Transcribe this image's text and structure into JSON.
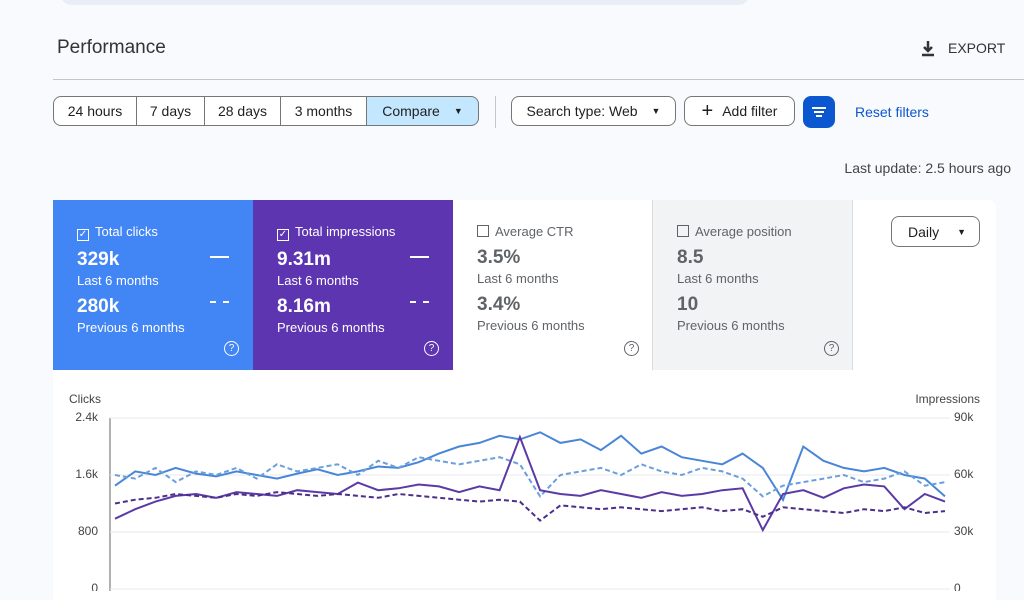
{
  "header": {
    "title": "Performance",
    "export": "EXPORT"
  },
  "filters": {
    "ranges": [
      "24 hours",
      "7 days",
      "28 days",
      "3 months",
      "Compare"
    ],
    "search_type": "Search type: Web",
    "add_filter": "Add filter",
    "reset": "Reset filters"
  },
  "last_update": "Last update: 2.5 hours ago",
  "metrics": [
    {
      "label": "Total clicks",
      "current": "329k",
      "current_period": "Last 6 months",
      "previous": "280k",
      "previous_period": "Previous 6 months",
      "checked": true,
      "color": "#4285f4"
    },
    {
      "label": "Total impressions",
      "current": "9.31m",
      "current_period": "Last 6 months",
      "previous": "8.16m",
      "previous_period": "Previous 6 months",
      "checked": true,
      "color": "#5e35b1"
    },
    {
      "label": "Average CTR",
      "current": "3.5%",
      "current_period": "Last 6 months",
      "previous": "3.4%",
      "previous_period": "Previous 6 months",
      "checked": false,
      "color": "#ffffff"
    },
    {
      "label": "Average position",
      "current": "8.5",
      "current_period": "Last 6 months",
      "previous": "10",
      "previous_period": "Previous 6 months",
      "checked": false,
      "color": "#f1f3f4"
    }
  ],
  "granularity": "Daily",
  "chart_data": {
    "type": "line",
    "ylabel": "Clicks",
    "y2label": "Impressions",
    "ylim": [
      0,
      2400
    ],
    "yticks": [
      0,
      800,
      {
        "value": 1600,
        "label": "1.6k"
      },
      {
        "value": 2400,
        "label": "2.4k"
      }
    ],
    "y2lim": [
      0,
      90000
    ],
    "y2ticks": [
      0,
      {
        "value": 30000,
        "label": "30k"
      },
      {
        "value": 60000,
        "label": "60k"
      },
      {
        "value": 90000,
        "label": "90k"
      }
    ],
    "grid": true,
    "series": [
      {
        "color": "#4a86d8",
        "dash": false,
        "values": [
          1450,
          1650,
          1600,
          1700,
          1620,
          1580,
          1650,
          1600,
          1550,
          1620,
          1680,
          1600,
          1650,
          1720,
          1700,
          1780,
          1900,
          2000,
          2050,
          2150,
          2100,
          2200,
          2050,
          2100,
          1950,
          2150,
          1900,
          2000,
          1850,
          1800,
          1750,
          1900,
          1700,
          1250,
          2000,
          1800,
          1700,
          1650,
          1700,
          1600,
          1550,
          1300
        ]
      },
      {
        "color": "#6a9fdc",
        "dash": true,
        "values": [
          1600,
          1550,
          1700,
          1500,
          1650,
          1600,
          1700,
          1550,
          1750,
          1650,
          1700,
          1750,
          1600,
          1800,
          1700,
          1850,
          1800,
          1750,
          1800,
          1850,
          1750,
          1300,
          1600,
          1650,
          1700,
          1600,
          1750,
          1650,
          1600,
          1700,
          1650,
          1550,
          1300,
          1450,
          1500,
          1550,
          1600,
          1500,
          1550,
          1650,
          1450,
          1500
        ]
      },
      {
        "color": "#5b3aa6",
        "dash": false,
        "axis": "y2",
        "values": [
          37000,
          42000,
          46000,
          49000,
          50000,
          48000,
          51000,
          50000,
          49000,
          52000,
          51000,
          50000,
          56000,
          52000,
          53000,
          55000,
          54000,
          51000,
          54000,
          52000,
          80000,
          52000,
          50000,
          49000,
          52000,
          50000,
          48000,
          51000,
          49000,
          50000,
          52000,
          53000,
          31000,
          50000,
          52000,
          48000,
          53000,
          55000,
          54000,
          42000,
          50000,
          46000
        ]
      },
      {
        "color": "#4b2f8a",
        "dash": true,
        "axis": "y2",
        "values": [
          45000,
          47000,
          48000,
          50000,
          49000,
          48000,
          50000,
          49000,
          51000,
          50000,
          49000,
          50000,
          49000,
          48000,
          50000,
          49000,
          48000,
          47000,
          46000,
          47000,
          46000,
          36000,
          44000,
          43000,
          42000,
          43000,
          42000,
          41000,
          42000,
          43000,
          41000,
          42000,
          38000,
          43000,
          42000,
          41000,
          40000,
          42000,
          41000,
          43000,
          40000,
          41000
        ]
      }
    ]
  }
}
